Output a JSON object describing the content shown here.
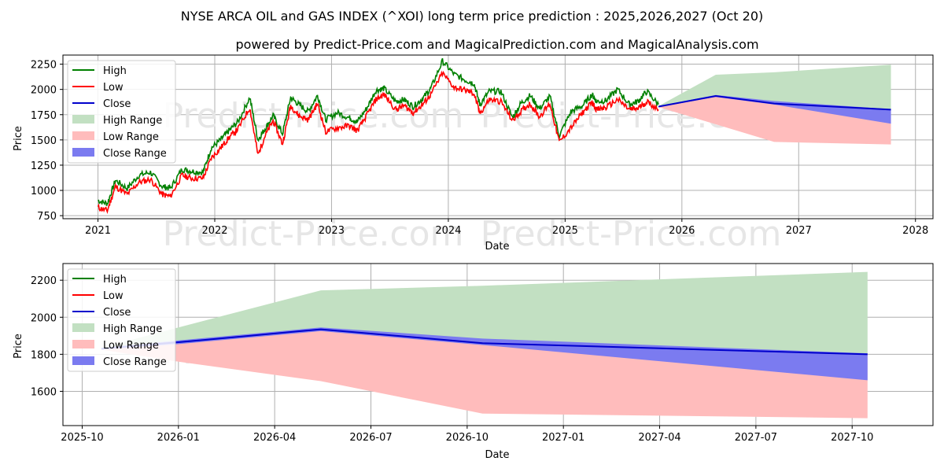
{
  "title": "NYSE ARCA OIL  and  GAS INDEX (^XOI) long term price prediction : 2025,2026,2027 (Oct 20)",
  "subtitle": "powered by Predict-Price.com and MagicalPrediction.com and MagicalAnalysis.com",
  "watermark": "Predict-Price.com",
  "colors": {
    "high": "#008000",
    "low": "#ff0000",
    "close": "#0000cc",
    "high_range": "#c2e0c2",
    "low_range": "#ffbcbc",
    "close_range": "#7b7bf0"
  },
  "chart_data": [
    {
      "type": "line",
      "xlabel": "Date",
      "ylabel": "Price",
      "xlim": [
        2020.7,
        2028.15
      ],
      "ylim": [
        720,
        2340
      ],
      "xticks": [
        2021,
        2022,
        2023,
        2024,
        2025,
        2026,
        2027,
        2028
      ],
      "xtick_labels": [
        "2021",
        "2022",
        "2023",
        "2024",
        "2025",
        "2026",
        "2027",
        "2028"
      ],
      "yticks": [
        750,
        1000,
        1250,
        1500,
        1750,
        2000,
        2250
      ],
      "ytick_labels": [
        "750",
        "1000",
        "1250",
        "1500",
        "1750",
        "2000",
        "2250"
      ],
      "grid": true,
      "legend_position": "top-left",
      "legend": [
        "High",
        "Low",
        "Close",
        "High Range",
        "Low Range",
        "Close Range"
      ],
      "history": {
        "x": [
          2021.0,
          2021.08,
          2021.15,
          2021.25,
          2021.35,
          2021.45,
          2021.55,
          2021.62,
          2021.72,
          2021.8,
          2021.9,
          2021.97,
          2022.05,
          2022.12,
          2022.2,
          2022.3,
          2022.37,
          2022.43,
          2022.5,
          2022.58,
          2022.65,
          2022.72,
          2022.8,
          2022.88,
          2022.95,
          2023.05,
          2023.15,
          2023.22,
          2023.3,
          2023.38,
          2023.45,
          2023.55,
          2023.62,
          2023.7,
          2023.78,
          2023.85,
          2023.95,
          2024.05,
          2024.15,
          2024.22,
          2024.27,
          2024.35,
          2024.45,
          2024.55,
          2024.62,
          2024.7,
          2024.78,
          2024.87,
          2024.95,
          2025.05,
          2025.15,
          2025.23,
          2025.27,
          2025.35,
          2025.45,
          2025.55,
          2025.62,
          2025.7,
          2025.8
        ],
        "high": [
          900,
          870,
          1100,
          1020,
          1150,
          1180,
          1040,
          1020,
          1210,
          1190,
          1180,
          1420,
          1500,
          1590,
          1680,
          1920,
          1500,
          1610,
          1740,
          1560,
          1920,
          1850,
          1780,
          1940,
          1700,
          1770,
          1720,
          1680,
          1810,
          1990,
          2010,
          1880,
          1900,
          1830,
          1910,
          2010,
          2280,
          2150,
          2090,
          2060,
          1850,
          1980,
          1980,
          1720,
          1860,
          1940,
          1810,
          1930,
          1540,
          1780,
          1840,
          1950,
          1880,
          1890,
          2000,
          1850,
          1880,
          1980,
          1850
        ],
        "low": [
          830,
          800,
          1040,
          960,
          1080,
          1110,
          960,
          940,
          1150,
          1120,
          1120,
          1320,
          1420,
          1520,
          1610,
          1820,
          1350,
          1540,
          1690,
          1460,
          1840,
          1740,
          1700,
          1860,
          1580,
          1620,
          1640,
          1590,
          1740,
          1900,
          1950,
          1800,
          1840,
          1770,
          1850,
          1950,
          2160,
          2020,
          1990,
          1960,
          1760,
          1900,
          1880,
          1690,
          1780,
          1860,
          1730,
          1860,
          1480,
          1620,
          1770,
          1870,
          1800,
          1820,
          1900,
          1800,
          1810,
          1880,
          1800
        ]
      },
      "forecast": {
        "x": [
          2025.8,
          2026.29,
          2026.79,
          2027.79
        ],
        "close": [
          1830,
          1935,
          1860,
          1800
        ],
        "close_upper": [
          1835,
          1945,
          1885,
          1805
        ],
        "close_lower": [
          1825,
          1925,
          1850,
          1660
        ],
        "high_upper": [
          1835,
          2145,
          2170,
          2245
        ],
        "low_lower": [
          1825,
          1655,
          1480,
          1455
        ]
      }
    },
    {
      "type": "line",
      "xlabel": "Date",
      "ylabel": "Price",
      "xlim": [
        2025.7,
        2027.96
      ],
      "ylim": [
        1415,
        2290
      ],
      "xticks": [
        2025.75,
        2026.0,
        2026.25,
        2026.5,
        2026.75,
        2027.0,
        2027.25,
        2027.5,
        2027.75
      ],
      "xtick_labels": [
        "2025-10",
        "2026-01",
        "2026-04",
        "2026-07",
        "2026-10",
        "2027-01",
        "2027-04",
        "2027-07",
        "2027-10"
      ],
      "yticks": [
        1600,
        1800,
        2000,
        2200
      ],
      "ytick_labels": [
        "1600",
        "1800",
        "2000",
        "2200"
      ],
      "grid": true,
      "legend_position": "top-left",
      "legend": [
        "High",
        "Low",
        "Close",
        "High Range",
        "Low Range",
        "Close Range"
      ],
      "forecast": {
        "x": [
          2025.8,
          2026.0,
          2026.37,
          2026.79,
          2027.79
        ],
        "close": [
          1830,
          1865,
          1935,
          1860,
          1800
        ],
        "close_upper": [
          1835,
          1875,
          1945,
          1885,
          1805
        ],
        "close_lower": [
          1825,
          1855,
          1925,
          1850,
          1660
        ],
        "high_upper": [
          1835,
          1945,
          2145,
          2170,
          2245
        ],
        "low_lower": [
          1825,
          1760,
          1655,
          1480,
          1455
        ]
      }
    }
  ]
}
